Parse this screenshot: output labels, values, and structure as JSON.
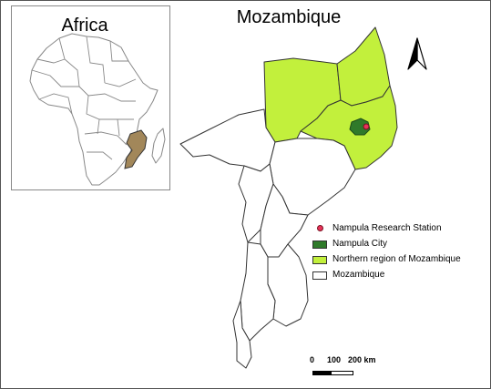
{
  "inset": {
    "title": "Africa",
    "colors": {
      "land": "#ffffff",
      "border": "#888888",
      "mozambique": "#a2875a"
    }
  },
  "main": {
    "title": "Mozambique",
    "colors": {
      "northern": "#c2f03c",
      "city": "#2f7a2a",
      "station": "#e8335a",
      "provinces": "#ffffff",
      "border": "#333333"
    }
  },
  "legend": {
    "items": [
      {
        "label": "Nampula Research Station",
        "symbol": "dot",
        "color": "#e8335a"
      },
      {
        "label": "Nampula City",
        "symbol": "box",
        "color": "#2f7a2a"
      },
      {
        "label": "Northern region of Mozambique",
        "symbol": "box",
        "color": "#c2f03c"
      },
      {
        "label": "Mozambique",
        "symbol": "box",
        "color": "#ffffff"
      }
    ]
  },
  "scale": {
    "labels": [
      "0",
      "100",
      "200 km"
    ]
  },
  "north_arrow": {
    "icon": "north-arrow-icon"
  }
}
